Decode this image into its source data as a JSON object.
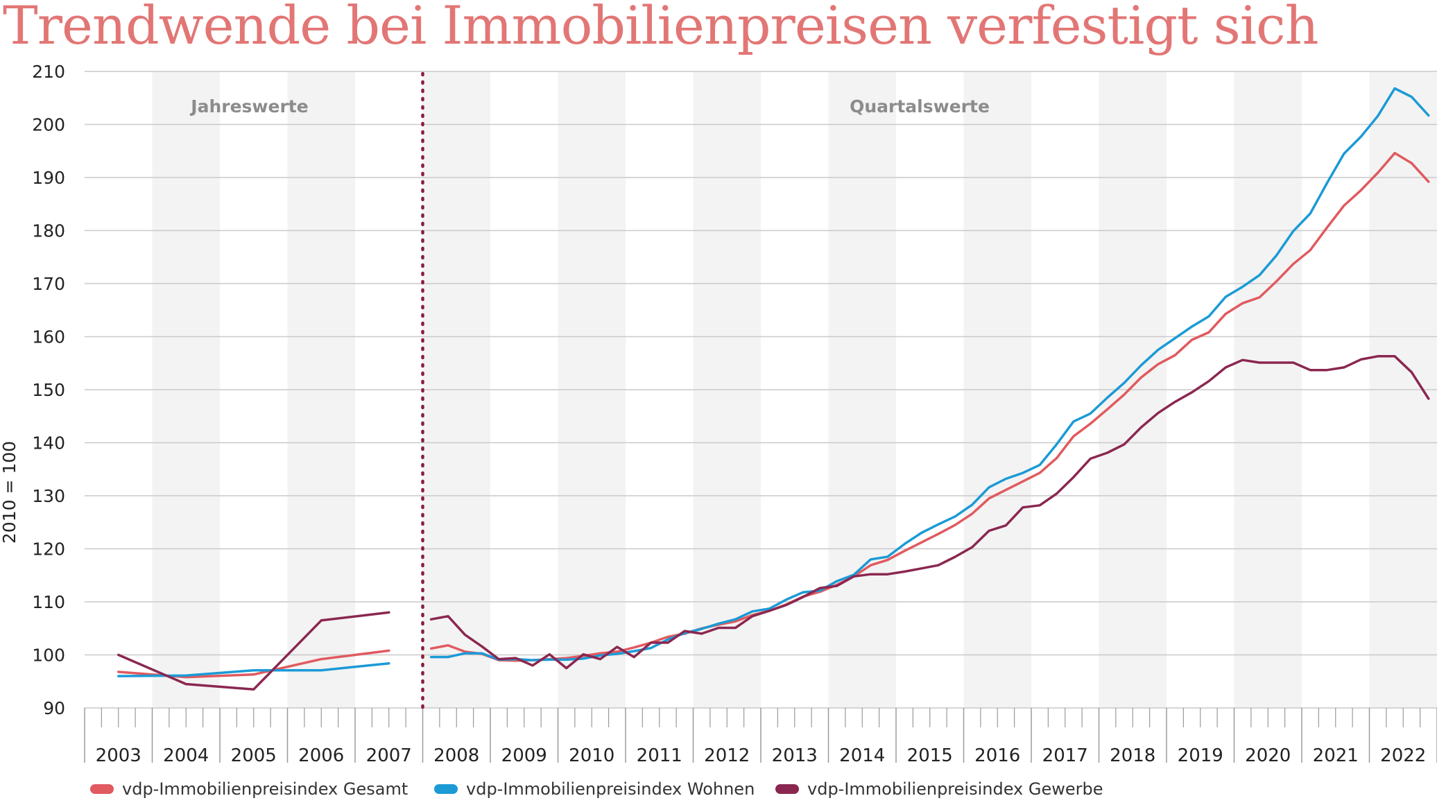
{
  "title": "Trendwende bei Immobilienpreisen verfestigt sich",
  "chart_data": {
    "type": "line",
    "ylabel": "2010 = 100",
    "ylim": [
      90,
      210
    ],
    "yticks": [
      90,
      100,
      110,
      120,
      130,
      140,
      150,
      160,
      170,
      180,
      190,
      200,
      210
    ],
    "years": [
      "2003",
      "2004",
      "2005",
      "2006",
      "2007",
      "2008",
      "2009",
      "2010",
      "2011",
      "2012",
      "2013",
      "2014",
      "2015",
      "2016",
      "2017",
      "2018",
      "2019",
      "2020",
      "2021",
      "2022"
    ],
    "annotations": {
      "annual": "Jahreswerte",
      "quarterly": "Quartalswerte"
    },
    "colors": {
      "gesamt": "#e05a5f",
      "wohnen": "#1b9ad6",
      "gewerbe": "#8a2750",
      "divider": "#8a1c3c"
    },
    "annual_x": [
      "2003",
      "2004",
      "2005",
      "2006",
      "2007"
    ],
    "quarterly_x": [
      "2008Q1",
      "2008Q2",
      "2008Q3",
      "2008Q4",
      "2009Q1",
      "2009Q2",
      "2009Q3",
      "2009Q4",
      "2010Q1",
      "2010Q2",
      "2010Q3",
      "2010Q4",
      "2011Q1",
      "2011Q2",
      "2011Q3",
      "2011Q4",
      "2012Q1",
      "2012Q2",
      "2012Q3",
      "2012Q4",
      "2013Q1",
      "2013Q2",
      "2013Q3",
      "2013Q4",
      "2014Q1",
      "2014Q2",
      "2014Q3",
      "2014Q4",
      "2015Q1",
      "2015Q2",
      "2015Q3",
      "2015Q4",
      "2016Q1",
      "2016Q2",
      "2016Q3",
      "2016Q4",
      "2017Q1",
      "2017Q2",
      "2017Q3",
      "2017Q4",
      "2018Q1",
      "2018Q2",
      "2018Q3",
      "2018Q4",
      "2019Q1",
      "2019Q2",
      "2019Q3",
      "2019Q4",
      "2020Q1",
      "2020Q2",
      "2020Q3",
      "2020Q4",
      "2021Q1",
      "2021Q2",
      "2021Q3",
      "2021Q4",
      "2022Q1",
      "2022Q2",
      "2022Q3",
      "2022Q4"
    ],
    "series": [
      {
        "name": "vdp-Immobilienpreisindex Gesamt",
        "key": "gesamt",
        "annual": [
          96.8,
          95.8,
          96.3,
          99.2,
          100.8
        ],
        "quarterly": [
          101.2,
          101.8,
          100.6,
          100.2,
          99.0,
          98.9,
          99.0,
          99.2,
          99.4,
          99.8,
          100.3,
          100.6,
          101.4,
          102.3,
          103.4,
          104.0,
          105.0,
          105.7,
          106.3,
          107.5,
          108.3,
          109.5,
          111.0,
          111.9,
          113.2,
          114.8,
          116.9,
          117.9,
          119.6,
          121.2,
          122.8,
          124.5,
          126.6,
          129.5,
          131.1,
          132.7,
          134.3,
          137.1,
          141.2,
          143.6,
          146.3,
          149.1,
          152.3,
          154.8,
          156.5,
          159.4,
          160.8,
          164.3,
          166.3,
          167.4,
          170.4,
          173.7,
          176.3,
          180.6,
          184.7,
          187.6,
          190.9,
          194.6,
          192.7,
          189.2
        ]
      },
      {
        "name": "vdp-Immobilienpreisindex Wohnen",
        "key": "wohnen",
        "annual": [
          96.0,
          96.1,
          97.1,
          97.1,
          98.4
        ],
        "quarterly": [
          99.6,
          99.6,
          100.3,
          100.3,
          99.1,
          99.2,
          99.0,
          99.1,
          99.1,
          99.3,
          99.9,
          100.2,
          100.7,
          101.3,
          102.9,
          104.1,
          104.9,
          105.9,
          106.7,
          108.2,
          108.7,
          110.4,
          111.8,
          112.1,
          113.9,
          115.1,
          118.0,
          118.5,
          120.9,
          123.0,
          124.6,
          126.1,
          128.3,
          131.6,
          133.2,
          134.3,
          135.8,
          139.7,
          144.0,
          145.5,
          148.5,
          151.3,
          154.6,
          157.5,
          159.7,
          161.9,
          163.8,
          167.5,
          169.4,
          171.6,
          175.3,
          179.9,
          183.2,
          189.0,
          194.5,
          197.7,
          201.6,
          206.8,
          205.2,
          201.7
        ]
      },
      {
        "name": "vdp-Immobilienpreisindex Gewerbe",
        "key": "gewerbe",
        "annual": [
          100.0,
          94.5,
          93.5,
          106.5,
          108.0
        ],
        "quarterly": [
          106.7,
          107.3,
          103.8,
          101.6,
          99.2,
          99.4,
          98.0,
          100.1,
          97.5,
          100.1,
          99.2,
          101.5,
          99.6,
          102.3,
          102.3,
          104.5,
          104.0,
          105.1,
          105.1,
          107.3,
          108.3,
          109.4,
          110.9,
          112.6,
          113.0,
          114.8,
          115.2,
          115.2,
          115.7,
          116.3,
          116.9,
          118.5,
          120.3,
          123.4,
          124.4,
          127.8,
          128.2,
          130.4,
          133.5,
          137.0,
          138.1,
          139.7,
          142.9,
          145.6,
          147.7,
          149.5,
          151.6,
          154.2,
          155.6,
          155.1,
          155.1,
          155.1,
          153.7,
          153.7,
          154.2,
          155.7,
          156.3,
          156.3,
          153.3,
          148.3
        ]
      }
    ]
  }
}
